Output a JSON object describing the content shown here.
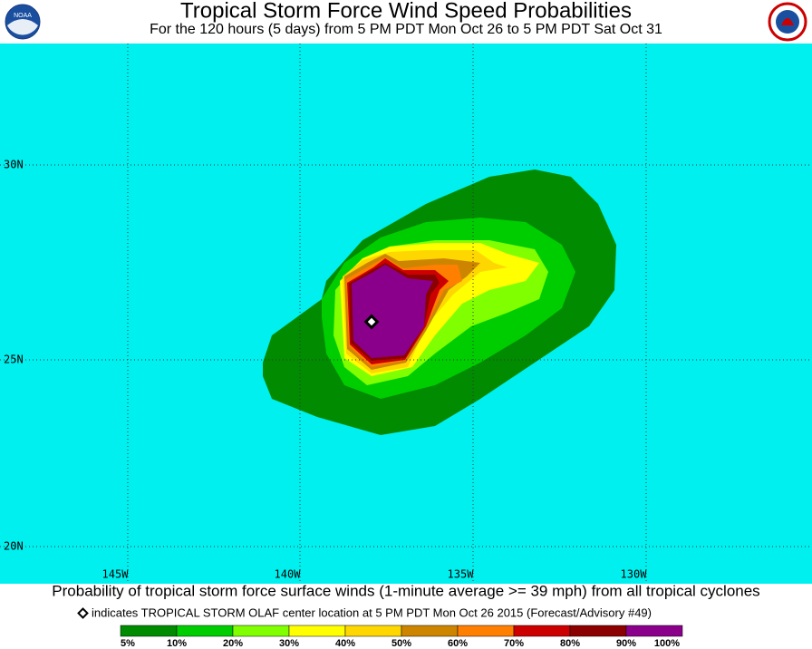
{
  "header": {
    "title": "Tropical Storm Force Wind Speed Probabilities",
    "subtitle": "For the 120 hours (5 days) from 5 PM PDT Mon Oct 26 to 5 PM PDT Sat Oct 31",
    "noaa_logo": "NOAA"
  },
  "map": {
    "lat_labels": [
      "30N",
      "25N",
      "20N"
    ],
    "lon_labels": [
      "145W",
      "140W",
      "135W",
      "130W"
    ]
  },
  "footer": {
    "caption": "Probability of tropical storm force surface winds (1-minute average >= 39 mph) from all tropical cyclones",
    "note": "indicates TROPICAL STORM OLAF center location at 5 PM PDT Mon Oct 26 2015 (Forecast/Advisory #49)"
  },
  "legend": {
    "labels": [
      "5%",
      "10%",
      "20%",
      "30%",
      "40%",
      "50%",
      "60%",
      "70%",
      "80%",
      "90%",
      "100%"
    ],
    "colors": [
      "#008b00",
      "#00cd00",
      "#7fff00",
      "#ffff00",
      "#ffd700",
      "#cd8500",
      "#ff7f00",
      "#cd0000",
      "#8b0000",
      "#8b008b"
    ]
  }
}
